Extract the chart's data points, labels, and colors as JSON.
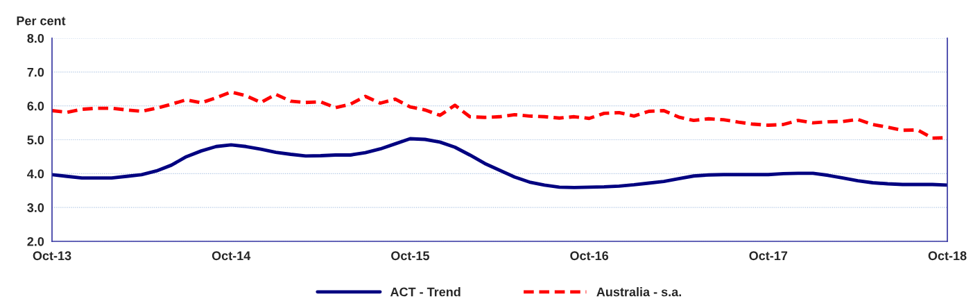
{
  "chart_data": {
    "type": "line",
    "ylabel": "Per cent",
    "categories": [
      "Oct-13",
      null,
      null,
      null,
      null,
      null,
      null,
      null,
      null,
      null,
      null,
      null,
      "Oct-14",
      null,
      null,
      null,
      null,
      null,
      null,
      null,
      null,
      null,
      null,
      null,
      "Oct-15",
      null,
      null,
      null,
      null,
      null,
      null,
      null,
      null,
      null,
      null,
      null,
      "Oct-16",
      null,
      null,
      null,
      null,
      null,
      null,
      null,
      null,
      null,
      null,
      null,
      "Oct-17",
      null,
      null,
      null,
      null,
      null,
      null,
      null,
      null,
      null,
      null,
      null,
      "Oct-18"
    ],
    "series": [
      {
        "name": "ACT - Trend",
        "color": "#000080",
        "line_style": "solid",
        "values": [
          3.97,
          3.92,
          3.87,
          3.87,
          3.87,
          3.92,
          3.97,
          4.08,
          4.25,
          4.5,
          4.67,
          4.8,
          4.85,
          4.8,
          4.72,
          4.63,
          4.57,
          4.52,
          4.53,
          4.55,
          4.55,
          4.62,
          4.73,
          4.88,
          5.03,
          5.01,
          4.93,
          4.78,
          4.55,
          4.3,
          4.1,
          3.9,
          3.75,
          3.66,
          3.6,
          3.59,
          3.6,
          3.61,
          3.63,
          3.67,
          3.72,
          3.77,
          3.85,
          3.93,
          3.96,
          3.97,
          3.97,
          3.97,
          3.97,
          4.0,
          4.01,
          4.01,
          3.95,
          3.87,
          3.79,
          3.73,
          3.7,
          3.68,
          3.68,
          3.68,
          3.66
        ]
      },
      {
        "name": "Australia - s.a.",
        "color": "#ff0000",
        "line_style": "dashed",
        "values": [
          5.86,
          5.81,
          5.9,
          5.93,
          5.93,
          5.88,
          5.84,
          5.93,
          6.05,
          6.18,
          6.09,
          6.24,
          6.41,
          6.3,
          6.1,
          6.34,
          6.14,
          6.1,
          6.12,
          5.95,
          6.05,
          6.28,
          6.08,
          6.2,
          5.97,
          5.88,
          5.72,
          6.02,
          5.68,
          5.66,
          5.68,
          5.74,
          5.7,
          5.68,
          5.64,
          5.68,
          5.63,
          5.78,
          5.8,
          5.7,
          5.84,
          5.86,
          5.67,
          5.57,
          5.62,
          5.59,
          5.52,
          5.46,
          5.43,
          5.45,
          5.57,
          5.5,
          5.53,
          5.54,
          5.6,
          5.45,
          5.37,
          5.28,
          5.29,
          5.05,
          5.06
        ]
      }
    ],
    "ylim": [
      2.0,
      8.0
    ],
    "yticks": [
      {
        "value": 2,
        "label": "2.0"
      },
      {
        "value": 3,
        "label": "3.0"
      },
      {
        "value": 4,
        "label": "4.0"
      },
      {
        "value": 5,
        "label": "5.0"
      },
      {
        "value": 6,
        "label": "6.0"
      },
      {
        "value": 7,
        "label": "7.0"
      },
      {
        "value": 8,
        "label": "8.0"
      }
    ],
    "grid": "y",
    "legend": "bottom",
    "marker": "none"
  }
}
